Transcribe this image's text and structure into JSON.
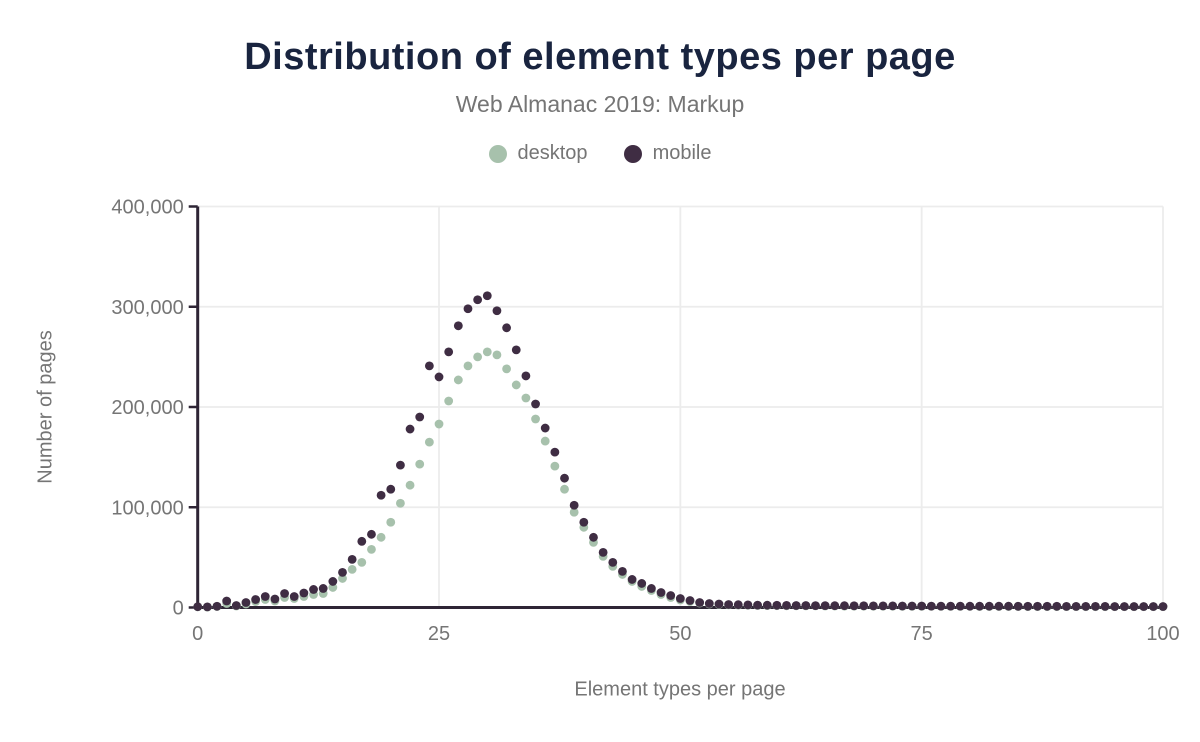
{
  "title": "Distribution of element types per page",
  "subtitle": "Web Almanac 2019: Markup",
  "legend": [
    {
      "label": "desktop",
      "color": "#a7c1ac"
    },
    {
      "label": "mobile",
      "color": "#3f2d43"
    }
  ],
  "colors": {
    "title": "#19243f",
    "muted_text": "#757575",
    "gridline": "#ececec",
    "axis": "#2e2535",
    "background": "#ffffff",
    "desktop": "#a7c1ac",
    "mobile": "#3f2d43"
  },
  "chart_data": {
    "type": "scatter",
    "title": "Distribution of element types per page",
    "subtitle": "Web Almanac 2019: Markup",
    "xlabel": "Element types per page",
    "ylabel": "Number of pages",
    "xlim": [
      0,
      100
    ],
    "ylim": [
      0,
      400000
    ],
    "grid": true,
    "legend_position": "top",
    "x_ticks": [
      {
        "v": 0,
        "label": "0"
      },
      {
        "v": 25,
        "label": "25"
      },
      {
        "v": 50,
        "label": "50"
      },
      {
        "v": 75,
        "label": "75"
      },
      {
        "v": 100,
        "label": "100"
      }
    ],
    "y_ticks": [
      {
        "v": 0,
        "label": "0"
      },
      {
        "v": 100000,
        "label": "100,000"
      },
      {
        "v": 200000,
        "label": "200,000"
      },
      {
        "v": 300000,
        "label": "300,000"
      },
      {
        "v": 400000,
        "label": "400,000"
      }
    ],
    "x": [
      0,
      1,
      2,
      3,
      4,
      5,
      6,
      7,
      8,
      9,
      10,
      11,
      12,
      13,
      14,
      15,
      16,
      17,
      18,
      19,
      20,
      21,
      22,
      23,
      24,
      25,
      26,
      27,
      28,
      29,
      30,
      31,
      32,
      33,
      34,
      35,
      36,
      37,
      38,
      39,
      40,
      41,
      42,
      43,
      44,
      45,
      46,
      47,
      48,
      49,
      50,
      51,
      52,
      53,
      54,
      55,
      56,
      57,
      58,
      59,
      60,
      61,
      62,
      63,
      64,
      65,
      66,
      67,
      68,
      69,
      70,
      71,
      72,
      73,
      74,
      75,
      76,
      77,
      78,
      79,
      80,
      81,
      82,
      83,
      84,
      85,
      86,
      87,
      88,
      89,
      90,
      91,
      92,
      93,
      94,
      95,
      96,
      97,
      98,
      99,
      100
    ],
    "series": [
      {
        "name": "desktop",
        "color": "#a7c1ac",
        "values": [
          600,
          400,
          1000,
          4000,
          1500,
          3500,
          6000,
          8000,
          6500,
          10000,
          9000,
          11000,
          13000,
          14000,
          20000,
          29000,
          38000,
          45000,
          58000,
          70000,
          85000,
          104000,
          122000,
          143000,
          165000,
          183000,
          206000,
          227000,
          241000,
          250000,
          255000,
          252000,
          238000,
          222000,
          209000,
          188000,
          166000,
          141000,
          118000,
          95000,
          80000,
          65000,
          51000,
          41000,
          33000,
          26000,
          21000,
          17000,
          13000,
          10000,
          7500,
          6000,
          4500,
          3500,
          3000,
          2600,
          2400,
          2200,
          2000,
          1900,
          1800,
          1700,
          1700,
          1600,
          1600,
          1500,
          1500,
          1400,
          1400,
          1400,
          1300,
          1300,
          1300,
          1200,
          1200,
          1200,
          1200,
          1100,
          1100,
          1100,
          1100,
          1000,
          1000,
          1000,
          1000,
          1000,
          900,
          900,
          900,
          900,
          900,
          900,
          800,
          800,
          800,
          800,
          800,
          800,
          800,
          800,
          800
        ]
      },
      {
        "name": "mobile",
        "color": "#3f2d43",
        "values": [
          800,
          600,
          1200,
          6500,
          2000,
          5000,
          8000,
          11000,
          8500,
          14000,
          11000,
          14500,
          18000,
          19000,
          26000,
          35000,
          48000,
          66000,
          73000,
          112000,
          118000,
          142000,
          178000,
          190000,
          241000,
          230000,
          255000,
          281000,
          298000,
          307000,
          311000,
          296000,
          279000,
          257000,
          231000,
          203000,
          179000,
          155000,
          129000,
          102000,
          85000,
          70000,
          55000,
          45000,
          36000,
          28000,
          24000,
          19000,
          15000,
          12000,
          9000,
          7000,
          5000,
          4000,
          3500,
          3000,
          2800,
          2600,
          2400,
          2300,
          2200,
          2100,
          2000,
          2000,
          1900,
          1900,
          1800,
          1800,
          1700,
          1700,
          1600,
          1600,
          1600,
          1500,
          1500,
          1500,
          1400,
          1400,
          1400,
          1400,
          1300,
          1300,
          1300,
          1300,
          1300,
          1200,
          1200,
          1200,
          1200,
          1200,
          1100,
          1100,
          1100,
          1100,
          1100,
          1000,
          1000,
          1000,
          1000,
          1000,
          1000
        ]
      }
    ]
  }
}
